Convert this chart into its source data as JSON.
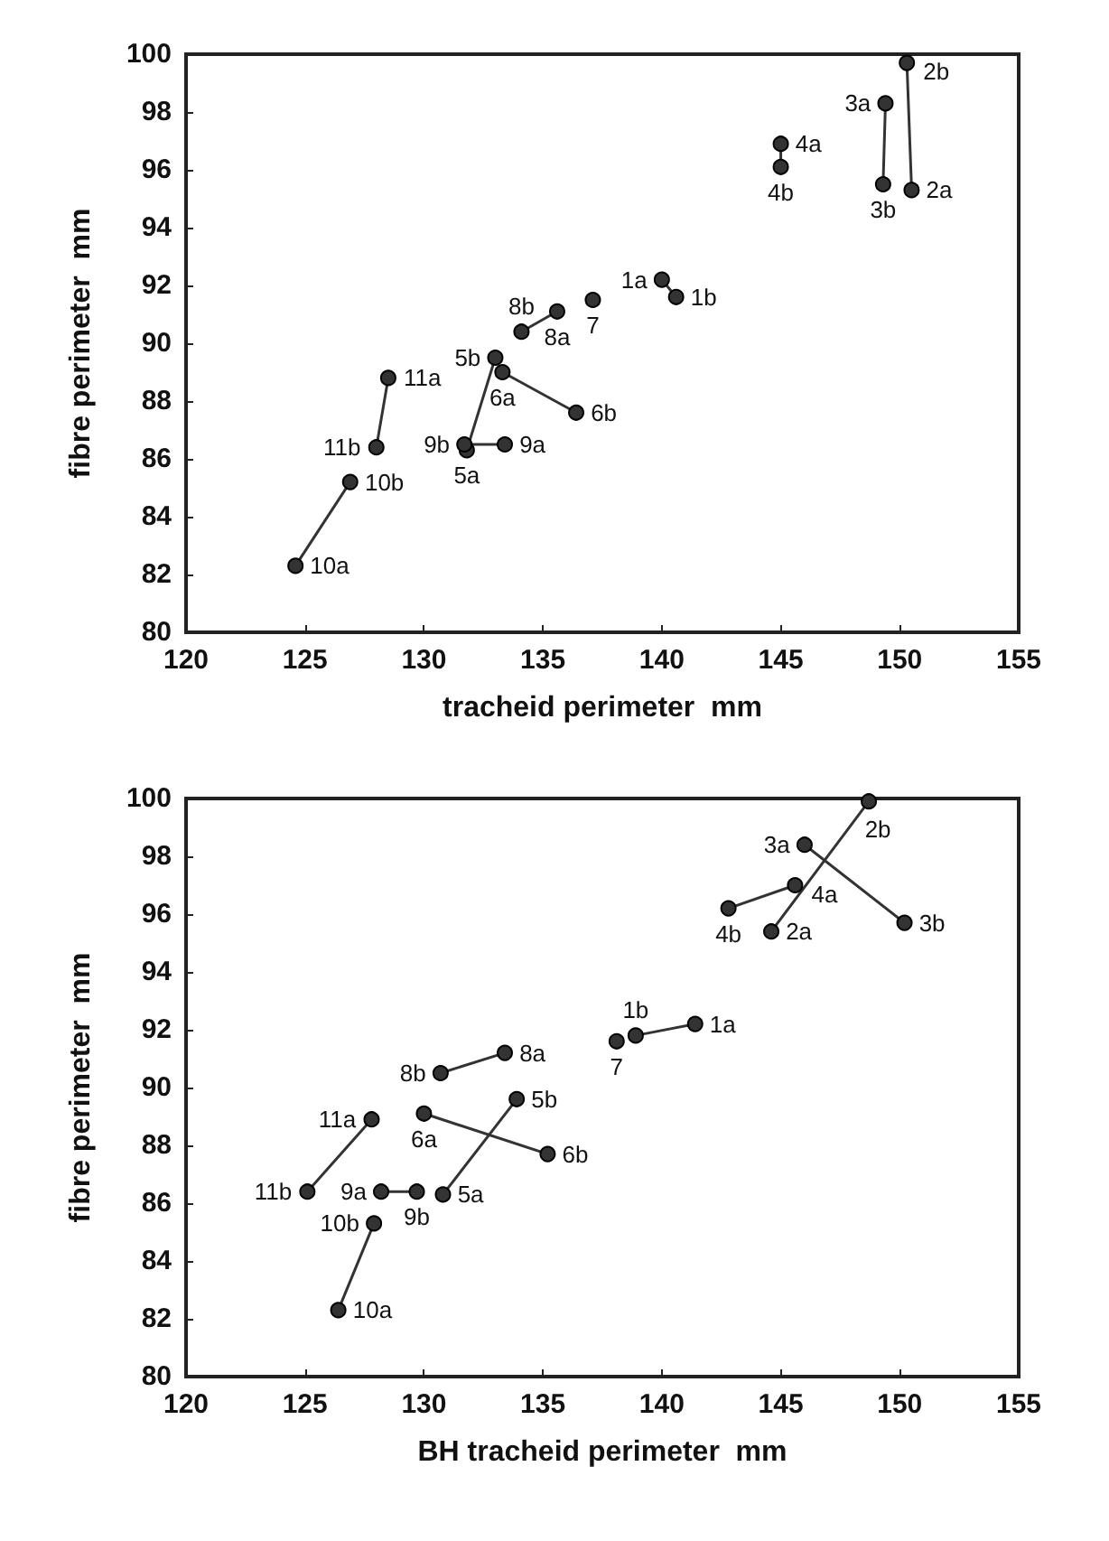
{
  "chart_data": [
    {
      "type": "line",
      "xlabel": "tracheid perimeter  mm",
      "ylabel": "fibre perimeter  mm",
      "xlim": [
        120,
        155
      ],
      "xticks": [
        120,
        125,
        130,
        135,
        140,
        145,
        150,
        155
      ],
      "ylim": [
        80,
        100
      ],
      "yticks": [
        80,
        82,
        84,
        86,
        88,
        90,
        92,
        94,
        96,
        98,
        100
      ],
      "grid": false,
      "marker": "circle",
      "line_style": "solid",
      "series": [
        {
          "color": "#333333",
          "x": [
            140.0,
            140.6
          ],
          "values": [
            92.2,
            91.6
          ]
        },
        {
          "color": "#333333",
          "x": [
            150.5,
            150.3
          ],
          "values": [
            95.3,
            99.7
          ]
        },
        {
          "color": "#333333",
          "x": [
            149.4,
            149.3
          ],
          "values": [
            98.3,
            95.5
          ]
        },
        {
          "color": "#333333",
          "x": [
            145.0,
            145.0
          ],
          "values": [
            96.9,
            96.1
          ]
        },
        {
          "color": "#333333",
          "x": [
            131.8,
            133.0
          ],
          "values": [
            86.3,
            89.5
          ]
        },
        {
          "color": "#333333",
          "x": [
            133.3,
            136.4
          ],
          "values": [
            89.0,
            87.6
          ]
        },
        {
          "color": "#333333",
          "x": [
            137.1
          ],
          "values": [
            91.5
          ]
        },
        {
          "color": "#333333",
          "x": [
            135.6,
            134.1
          ],
          "values": [
            91.1,
            90.4
          ]
        },
        {
          "color": "#333333",
          "x": [
            133.4,
            131.7
          ],
          "values": [
            86.5,
            86.5
          ]
        },
        {
          "color": "#333333",
          "x": [
            124.6,
            126.9
          ],
          "values": [
            82.3,
            85.2
          ]
        },
        {
          "color": "#333333",
          "x": [
            128.5,
            128.0
          ],
          "values": [
            88.8,
            86.4
          ]
        }
      ],
      "annotations": [
        {
          "text": "1a",
          "x": 140.0,
          "y": 92.2
        },
        {
          "text": "1b",
          "x": 140.6,
          "y": 91.6
        },
        {
          "text": "2a",
          "x": 150.5,
          "y": 95.3
        },
        {
          "text": "2b",
          "x": 150.3,
          "y": 99.7
        },
        {
          "text": "3a",
          "x": 149.4,
          "y": 98.3
        },
        {
          "text": "3b",
          "x": 149.3,
          "y": 95.5
        },
        {
          "text": "4a",
          "x": 145.0,
          "y": 96.9
        },
        {
          "text": "4b",
          "x": 145.0,
          "y": 96.1
        },
        {
          "text": "5a",
          "x": 131.8,
          "y": 86.3
        },
        {
          "text": "5b",
          "x": 133.0,
          "y": 89.5
        },
        {
          "text": "6a",
          "x": 133.3,
          "y": 89.0
        },
        {
          "text": "6b",
          "x": 136.4,
          "y": 87.6
        },
        {
          "text": "7",
          "x": 137.1,
          "y": 91.5
        },
        {
          "text": "8a",
          "x": 135.6,
          "y": 91.1
        },
        {
          "text": "8b",
          "x": 134.1,
          "y": 90.4
        },
        {
          "text": "9a",
          "x": 133.4,
          "y": 86.5
        },
        {
          "text": "9b",
          "x": 131.7,
          "y": 86.5
        },
        {
          "text": "10a",
          "x": 124.6,
          "y": 82.3
        },
        {
          "text": "10b",
          "x": 126.9,
          "y": 85.2
        },
        {
          "text": "11a",
          "x": 128.5,
          "y": 88.8
        },
        {
          "text": "11b",
          "x": 128.0,
          "y": 86.4
        }
      ]
    },
    {
      "type": "line",
      "xlabel": "BH tracheid perimeter  mm",
      "ylabel": "fibre perimeter  mm",
      "xlim": [
        120,
        155
      ],
      "xticks": [
        120,
        125,
        130,
        135,
        140,
        145,
        150,
        155
      ],
      "ylim": [
        80,
        100
      ],
      "yticks": [
        80,
        82,
        84,
        86,
        88,
        90,
        92,
        94,
        96,
        98,
        100
      ],
      "grid": false,
      "marker": "circle",
      "line_style": "solid",
      "series": [
        {
          "color": "#333333",
          "x": [
            141.4,
            138.9
          ],
          "values": [
            92.2,
            91.8
          ]
        },
        {
          "color": "#333333",
          "x": [
            144.6,
            148.7
          ],
          "values": [
            95.4,
            99.9
          ]
        },
        {
          "color": "#333333",
          "x": [
            146.0,
            150.2
          ],
          "values": [
            98.4,
            95.7
          ]
        },
        {
          "color": "#333333",
          "x": [
            145.6,
            142.8
          ],
          "values": [
            97.0,
            96.2
          ]
        },
        {
          "color": "#333333",
          "x": [
            130.8,
            133.9
          ],
          "values": [
            86.3,
            89.6
          ]
        },
        {
          "color": "#333333",
          "x": [
            130.0,
            135.2
          ],
          "values": [
            89.1,
            87.7
          ]
        },
        {
          "color": "#333333",
          "x": [
            138.1
          ],
          "values": [
            91.6
          ]
        },
        {
          "color": "#333333",
          "x": [
            133.4,
            130.7
          ],
          "values": [
            91.2,
            90.5
          ]
        },
        {
          "color": "#333333",
          "x": [
            128.2,
            129.7
          ],
          "values": [
            86.4,
            86.4
          ]
        },
        {
          "color": "#333333",
          "x": [
            126.4,
            127.9
          ],
          "values": [
            82.3,
            85.3
          ]
        },
        {
          "color": "#333333",
          "x": [
            127.8,
            125.1
          ],
          "values": [
            88.9,
            86.4
          ]
        }
      ],
      "annotations": [
        {
          "text": "1a",
          "x": 141.4,
          "y": 92.2
        },
        {
          "text": "1b",
          "x": 138.9,
          "y": 91.8
        },
        {
          "text": "2a",
          "x": 144.6,
          "y": 95.4
        },
        {
          "text": "2b",
          "x": 148.7,
          "y": 99.9
        },
        {
          "text": "3a",
          "x": 146.0,
          "y": 98.4
        },
        {
          "text": "3b",
          "x": 150.2,
          "y": 95.7
        },
        {
          "text": "4a",
          "x": 145.6,
          "y": 97.0
        },
        {
          "text": "4b",
          "x": 142.8,
          "y": 96.2
        },
        {
          "text": "5a",
          "x": 130.8,
          "y": 86.3
        },
        {
          "text": "5b",
          "x": 133.9,
          "y": 89.6
        },
        {
          "text": "6a",
          "x": 130.0,
          "y": 89.1
        },
        {
          "text": "6b",
          "x": 135.2,
          "y": 87.7
        },
        {
          "text": "7",
          "x": 138.1,
          "y": 91.6
        },
        {
          "text": "8a",
          "x": 133.4,
          "y": 91.2
        },
        {
          "text": "8b",
          "x": 130.7,
          "y": 90.5
        },
        {
          "text": "9a",
          "x": 128.2,
          "y": 86.4
        },
        {
          "text": "9b",
          "x": 129.7,
          "y": 86.4
        },
        {
          "text": "10a",
          "x": 126.4,
          "y": 82.3
        },
        {
          "text": "10b",
          "x": 127.9,
          "y": 85.3
        },
        {
          "text": "11a",
          "x": 127.8,
          "y": 88.9
        },
        {
          "text": "11b",
          "x": 125.1,
          "y": 86.4
        }
      ]
    }
  ]
}
